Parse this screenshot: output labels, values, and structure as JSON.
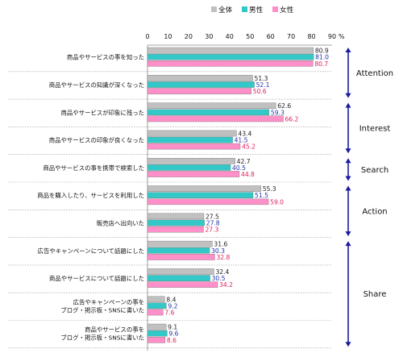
{
  "chart_data": {
    "type": "bar",
    "orientation": "horizontal",
    "title": "",
    "xlabel": "",
    "ylabel": "",
    "xlim": [
      0,
      90
    ],
    "x_unit": "%",
    "ticks": [
      "0",
      "10",
      "20",
      "30",
      "40",
      "50",
      "60",
      "70",
      "80",
      "90"
    ],
    "grid": false,
    "legend_position": "top",
    "categories": [
      [
        "商品やサービスの事を知った"
      ],
      [
        "商品やサービスの知識が深くなった"
      ],
      [
        "商品やサービスが印象に残った"
      ],
      [
        "商品やサービスの印象が良くなった"
      ],
      [
        "商品やサービスの事を携帯で検索した"
      ],
      [
        "商品を購入したり、サービスを利用した"
      ],
      [
        "販売店へ出向いた"
      ],
      [
        "広告やキャンペーンについて話題にした"
      ],
      [
        "商品やサービスについて話題にした"
      ],
      [
        "広告やキャンペーンの事を",
        "ブログ・掲示板・SNSに書いた"
      ],
      [
        "商品やサービスの事を",
        "ブログ・掲示板・SNSに書いた"
      ]
    ],
    "series": [
      {
        "name": "全体",
        "color": "#c0c0c0",
        "label_color": "#222222",
        "values": [
          80.9,
          51.3,
          62.6,
          43.4,
          42.7,
          55.3,
          27.5,
          31.6,
          32.4,
          8.4,
          9.1
        ]
      },
      {
        "name": "男性",
        "color": "#33c8c8",
        "label_color": "#2233aa",
        "values": [
          81.0,
          52.1,
          59.3,
          41.5,
          40.5,
          51.5,
          27.8,
          30.3,
          30.5,
          9.2,
          9.6
        ]
      },
      {
        "name": "女性",
        "color": "#ff8fc8",
        "label_color": "#e0205a",
        "values": [
          80.7,
          50.6,
          66.2,
          45.2,
          44.8,
          59.0,
          27.3,
          32.8,
          34.2,
          7.6,
          8.6
        ]
      }
    ],
    "value_labels": [
      [
        "80.9",
        "81.0",
        "80.7"
      ],
      [
        "51.3",
        "52.1",
        "50.6"
      ],
      [
        "62.6",
        "59.3",
        "66.2"
      ],
      [
        "43.4",
        "41.5",
        "45.2"
      ],
      [
        "42.7",
        "40.5",
        "44.8"
      ],
      [
        "55.3",
        "51.5",
        "59.0"
      ],
      [
        "27.5",
        "27.8",
        "27.3"
      ],
      [
        "31.6",
        "30.3",
        "32.8"
      ],
      [
        "32.4",
        "30.5",
        "34.2"
      ],
      [
        "8.4",
        "9.2",
        "7.6"
      ],
      [
        "9.1",
        "9.6",
        "8.6"
      ]
    ],
    "stages": [
      {
        "label": "Attention",
        "start": 0,
        "end": 1
      },
      {
        "label": "Interest",
        "start": 2,
        "end": 3
      },
      {
        "label": "Search",
        "start": 4,
        "end": 4
      },
      {
        "label": "Action",
        "start": 5,
        "end": 6
      },
      {
        "label": "Share",
        "start": 7,
        "end": 10
      }
    ],
    "stage_arrow_color": "#1a1aa0"
  }
}
